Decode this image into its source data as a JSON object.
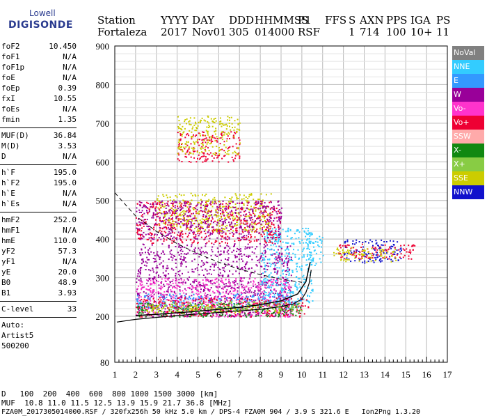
{
  "logo": {
    "line1": "Lowell",
    "line2": "DIGISONDE"
  },
  "header": {
    "labels": [
      "Station",
      "YYYY",
      "DAY",
      "DDD",
      "HHMMSS",
      "P1",
      "FFS",
      "S",
      "AXN",
      "PPS",
      "IGA",
      "PS"
    ],
    "values": [
      "Fortaleza",
      "2017",
      "Nov01",
      "305",
      "014000",
      "RSF",
      "1",
      "714",
      "100",
      "10+",
      "11"
    ]
  },
  "params": {
    "group1": [
      {
        "k": "foF2",
        "v": "10.450"
      },
      {
        "k": "foF1",
        "v": "N/A"
      },
      {
        "k": "foF1p",
        "v": "N/A"
      },
      {
        "k": "foE",
        "v": "N/A"
      },
      {
        "k": "foEp",
        "v": "0.39"
      },
      {
        "k": "fxI",
        "v": "10.55"
      },
      {
        "k": "foEs",
        "v": "N/A"
      },
      {
        "k": "fmin",
        "v": "1.35"
      }
    ],
    "group2": [
      {
        "k": "MUF(D)",
        "v": "36.84"
      },
      {
        "k": "M(D)",
        "v": "3.53"
      },
      {
        "k": "D",
        "v": "N/A"
      }
    ],
    "group3": [
      {
        "k": "h`F",
        "v": "195.0"
      },
      {
        "k": "h`F2",
        "v": "195.0"
      },
      {
        "k": "h`E",
        "v": "N/A"
      },
      {
        "k": "h`Es",
        "v": "N/A"
      }
    ],
    "group4": [
      {
        "k": "hmF2",
        "v": "252.0"
      },
      {
        "k": "hmF1",
        "v": "N/A"
      },
      {
        "k": "hmE",
        "v": "110.0"
      },
      {
        "k": "yF2",
        "v": "57.3"
      },
      {
        "k": "yF1",
        "v": "N/A"
      },
      {
        "k": "yE",
        "v": "20.0"
      },
      {
        "k": "B0",
        "v": "48.9"
      },
      {
        "k": "B1",
        "v": "3.93"
      }
    ],
    "group5": [
      {
        "k": "C-level",
        "v": "33"
      }
    ],
    "auto": [
      "Auto:",
      "Artist5",
      "500200"
    ]
  },
  "legend": [
    {
      "label": "NoVal",
      "color": "#808080"
    },
    {
      "label": "NNE",
      "color": "#33ccff"
    },
    {
      "label": "E",
      "color": "#3399ff"
    },
    {
      "label": "W",
      "color": "#990099"
    },
    {
      "label": "Vo-",
      "color": "#ff33cc"
    },
    {
      "label": "Vo+",
      "color": "#ee0033"
    },
    {
      "label": "SSW",
      "color": "#ffaaaa"
    },
    {
      "label": "X-",
      "color": "#118811"
    },
    {
      "label": "X+",
      "color": "#88cc44"
    },
    {
      "label": "SSE",
      "color": "#cccc00"
    },
    {
      "label": "NNW",
      "color": "#1111cc"
    }
  ],
  "chart_data": {
    "type": "scatter",
    "xlim": [
      1,
      17
    ],
    "ylim": [
      80,
      900
    ],
    "x_ticks": [
      "1",
      "2",
      "3",
      "4",
      "5",
      "6",
      "7",
      "8",
      "9",
      "10",
      "11",
      "12",
      "13",
      "14",
      "15",
      "16",
      "17"
    ],
    "y_ticks": [
      "80",
      "200",
      "300",
      "400",
      "500",
      "600",
      "700",
      "800",
      "900"
    ],
    "y_tick_values": [
      80,
      200,
      300,
      400,
      500,
      600,
      700,
      800,
      900
    ],
    "grid": true,
    "clusters": [
      {
        "color": "#990099",
        "x": [
          2,
          9.5
        ],
        "y": [
          200,
          390
        ]
      },
      {
        "color": "#ff33cc",
        "x": [
          2,
          9.5
        ],
        "y": [
          200,
          300
        ]
      },
      {
        "color": "#33ccff",
        "x": [
          8,
          10.5
        ],
        "y": [
          230,
          430
        ]
      },
      {
        "color": "#3399ff",
        "x": [
          2,
          10
        ],
        "y": [
          220,
          260
        ]
      },
      {
        "color": "#ee0033",
        "x": [
          2,
          10.3
        ],
        "y": [
          200,
          250
        ]
      },
      {
        "color": "#118811",
        "x": [
          2,
          10
        ],
        "y": [
          200,
          235
        ]
      },
      {
        "color": "#88cc44",
        "x": [
          2.5,
          10
        ],
        "y": [
          215,
          240
        ]
      },
      {
        "color": "#cccc00",
        "x": [
          2.5,
          9
        ],
        "y": [
          210,
          230
        ]
      },
      {
        "color": "#ee0033",
        "x": [
          2,
          9
        ],
        "y": [
          390,
          500
        ]
      },
      {
        "color": "#cccc00",
        "x": [
          3,
          8.5
        ],
        "y": [
          420,
          520
        ]
      },
      {
        "color": "#990099",
        "x": [
          2,
          9
        ],
        "y": [
          400,
          500
        ]
      },
      {
        "color": "#ee0033",
        "x": [
          4,
          7
        ],
        "y": [
          600,
          680
        ]
      },
      {
        "color": "#cccc00",
        "x": [
          4,
          7
        ],
        "y": [
          620,
          720
        ]
      },
      {
        "color": "#1111cc",
        "x": [
          12,
          14.8
        ],
        "y": [
          340,
          400
        ]
      },
      {
        "color": "#ee0033",
        "x": [
          11.7,
          15.4
        ],
        "y": [
          350,
          390
        ]
      },
      {
        "color": "#cccc00",
        "x": [
          11.5,
          14.5
        ],
        "y": [
          340,
          380
        ]
      },
      {
        "color": "#33ccff",
        "x": [
          10.2,
          11
        ],
        "y": [
          330,
          420
        ]
      }
    ],
    "profile_curve": {
      "x": [
        1.1,
        2,
        3,
        4,
        5,
        6,
        7,
        8,
        9,
        9.6,
        10,
        10.2,
        10.35,
        10.45
      ],
      "y": [
        185,
        192,
        197,
        202,
        206,
        210,
        214,
        218,
        225,
        232,
        245,
        262,
        285,
        320
      ]
    },
    "trace_curve": {
      "x": [
        2,
        3,
        4,
        5,
        6,
        7,
        8,
        9,
        9.8,
        10.2,
        10.4
      ],
      "y": [
        202,
        205,
        209,
        213,
        218,
        223,
        230,
        240,
        258,
        290,
        340
      ]
    },
    "muf_curve": {
      "x": [
        1,
        1.5,
        2,
        3,
        4,
        5,
        6,
        7,
        8,
        9,
        10
      ],
      "y": [
        520,
        490,
        460,
        420,
        388,
        362,
        340,
        322,
        308,
        296,
        288
      ]
    }
  },
  "footer": {
    "row1_label": "D",
    "row1_values": "100  200  400  600  800 1000 1500 3000 [km]",
    "row2_label": "MUF",
    "row2_values": "10.8 11.0 11.5 12.5 13.9 15.9 21.7 36.8 [MHz]",
    "row3": "FZA0M_2017305014000.RSF / 320fx256h 50 kHz 5.0 km / DPS-4 FZA0M 904 / 3.9 S 321.6 E   Ion2Png 1.3.20"
  }
}
